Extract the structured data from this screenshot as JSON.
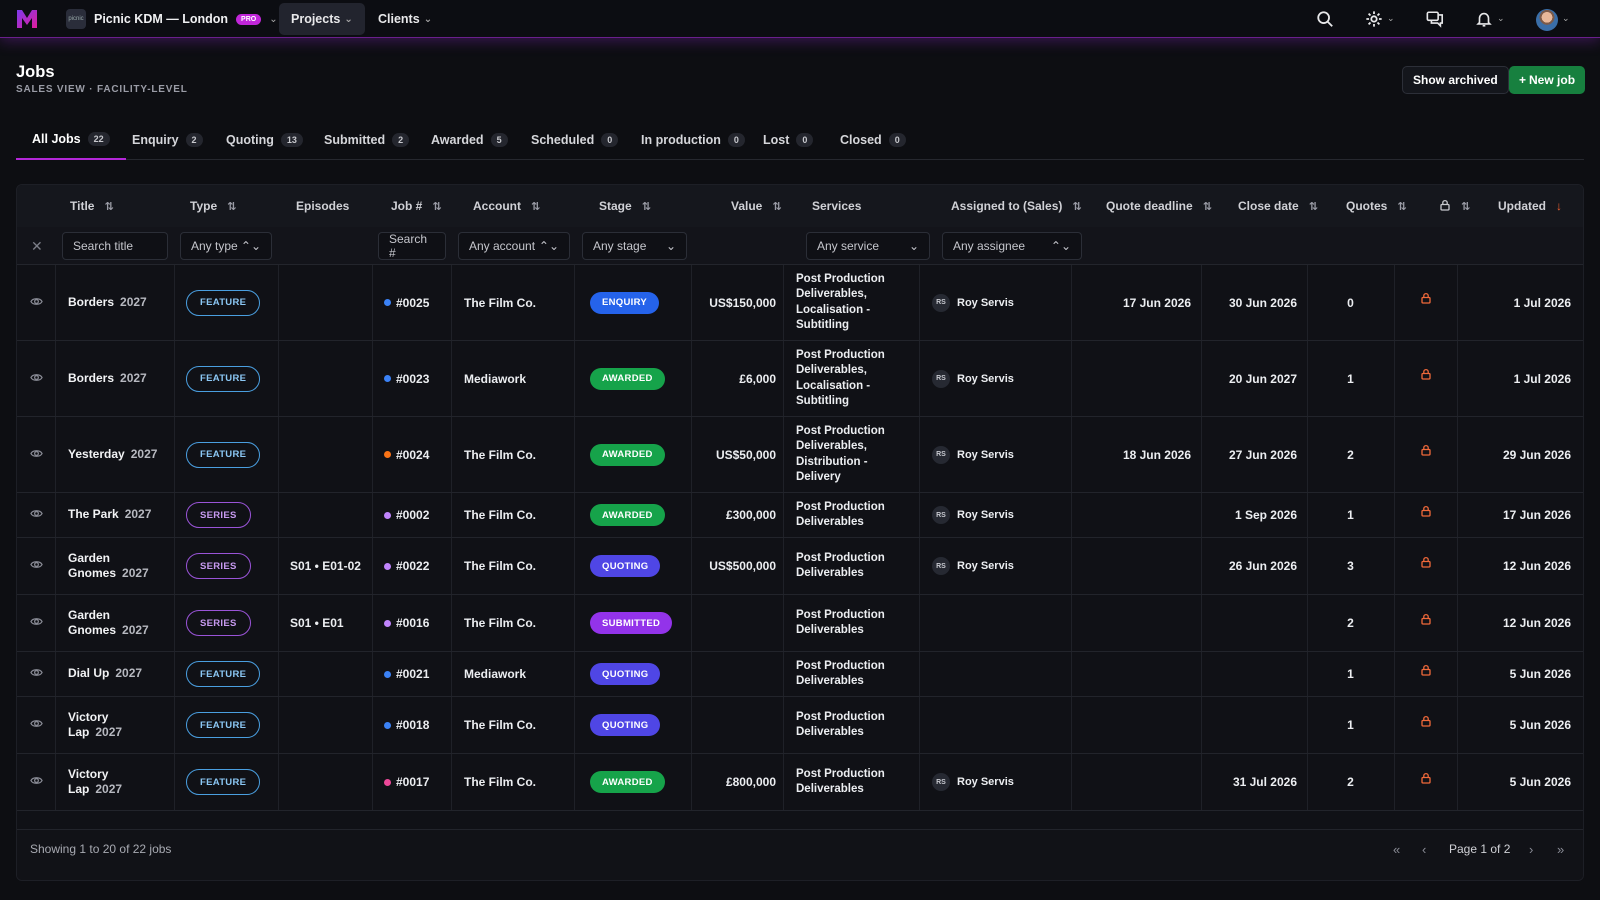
{
  "topbar": {
    "org_name": "Picnic KDM — London",
    "org_avatar": "picnic",
    "pro_label": "PRO",
    "nav": [
      {
        "label": "Projects"
      },
      {
        "label": "Clients"
      }
    ]
  },
  "header": {
    "title": "Jobs",
    "subtitle": "SALES VIEW · FACILITY-LEVEL",
    "show_archived_label": "Show archived",
    "new_job_label": "New job"
  },
  "tabs": [
    {
      "label": "All Jobs",
      "count": "22",
      "active": true
    },
    {
      "label": "Enquiry",
      "count": "2"
    },
    {
      "label": "Quoting",
      "count": "13"
    },
    {
      "label": "Submitted",
      "count": "2"
    },
    {
      "label": "Awarded",
      "count": "5"
    },
    {
      "label": "Scheduled",
      "count": "0"
    },
    {
      "label": "In production",
      "count": "0"
    },
    {
      "label": "Lost",
      "count": "0"
    },
    {
      "label": "Closed",
      "count": "0"
    }
  ],
  "columns": {
    "title": "Title",
    "type": "Type",
    "episodes": "Episodes",
    "job": "Job #",
    "account": "Account",
    "stage": "Stage",
    "value": "Value",
    "services": "Services",
    "assigned": "Assigned to (Sales)",
    "quote_deadline": "Quote deadline",
    "close_date": "Close date",
    "quotes": "Quotes",
    "updated": "Updated"
  },
  "filters": {
    "title_placeholder": "Search title",
    "type_value": "Any type",
    "job_placeholder": "Search #",
    "account_value": "Any account",
    "stage_value": "Any stage",
    "service_value": "Any service",
    "assignee_value": "Any assignee"
  },
  "colors": {
    "accent": "#b427d8",
    "awarded": "#16a34a",
    "enquiry": "#2563eb",
    "quoting": "#4f46e5",
    "submitted": "#9333ea",
    "lock": "#f0693a",
    "primary": "#17803f"
  },
  "rows": [
    {
      "title": "Borders",
      "year": "2027",
      "type": "FEATURE",
      "episodes": "",
      "job": "#0025",
      "dot": "#3b82f6",
      "account": "The Film Co.",
      "stage": "ENQUIRY",
      "stage_color": "#2563eb",
      "value": "US$150,000",
      "services": [
        "Post Production",
        "Deliverables,",
        "Localisation -",
        "Subtitling"
      ],
      "assignee_initials": "RS",
      "assignee": "Roy Servis",
      "quote_deadline": "17 Jun 2026",
      "close_date": "30 Jun 2026",
      "quotes": "0",
      "updated": "1 Jul 2026"
    },
    {
      "title": "Borders",
      "year": "2027",
      "type": "FEATURE",
      "episodes": "",
      "job": "#0023",
      "dot": "#3b82f6",
      "account": "Mediawork",
      "stage": "AWARDED",
      "stage_color": "#16a34a",
      "value": "£6,000",
      "services": [
        "Post Production",
        "Deliverables,",
        "Localisation -",
        "Subtitling"
      ],
      "assignee_initials": "RS",
      "assignee": "Roy Servis",
      "quote_deadline": "",
      "close_date": "20 Jun 2027",
      "quotes": "1",
      "updated": "1 Jul 2026"
    },
    {
      "title": "Yesterday",
      "year": "2027",
      "type": "FEATURE",
      "episodes": "",
      "job": "#0024",
      "dot": "#f97316",
      "account": "The Film Co.",
      "stage": "AWARDED",
      "stage_color": "#16a34a",
      "value": "US$50,000",
      "services": [
        "Post Production",
        "Deliverables,",
        "Distribution -",
        "Delivery"
      ],
      "assignee_initials": "RS",
      "assignee": "Roy Servis",
      "quote_deadline": "18 Jun 2026",
      "close_date": "27 Jun 2026",
      "quotes": "2",
      "updated": "29 Jun 2026"
    },
    {
      "title": "The Park",
      "year": "2027",
      "type": "SERIES",
      "episodes": "",
      "job": "#0002",
      "dot": "#c084fc",
      "account": "The Film Co.",
      "stage": "AWARDED",
      "stage_color": "#16a34a",
      "value": "£300,000",
      "services": [
        "Post Production",
        "Deliverables"
      ],
      "assignee_initials": "RS",
      "assignee": "Roy Servis",
      "quote_deadline": "",
      "close_date": "1 Sep 2026",
      "quotes": "1",
      "updated": "17 Jun 2026"
    },
    {
      "title": "Garden",
      "title2": "Gnomes",
      "year": "2027",
      "type": "SERIES",
      "episodes": "S01 • E01-02",
      "job": "#0022",
      "dot": "#c084fc",
      "account": "The Film Co.",
      "stage": "QUOTING",
      "stage_color": "#4f46e5",
      "value": "US$500,000",
      "services": [
        "Post Production",
        "Deliverables"
      ],
      "assignee_initials": "RS",
      "assignee": "Roy Servis",
      "quote_deadline": "",
      "close_date": "26 Jun 2026",
      "quotes": "3",
      "updated": "12 Jun 2026"
    },
    {
      "title": "Garden",
      "title2": "Gnomes",
      "year": "2027",
      "type": "SERIES",
      "episodes": "S01 • E01",
      "job": "#0016",
      "dot": "#c084fc",
      "account": "The Film Co.",
      "stage": "SUBMITTED",
      "stage_color": "#9333ea",
      "value": "",
      "services": [
        "Post Production",
        "Deliverables"
      ],
      "assignee_initials": "",
      "assignee": "",
      "quote_deadline": "",
      "close_date": "",
      "quotes": "2",
      "updated": "12 Jun 2026"
    },
    {
      "title": "Dial Up",
      "year": "2027",
      "type": "FEATURE",
      "episodes": "",
      "job": "#0021",
      "dot": "#3b82f6",
      "account": "Mediawork",
      "stage": "QUOTING",
      "stage_color": "#4f46e5",
      "value": "",
      "services": [
        "Post Production",
        "Deliverables"
      ],
      "assignee_initials": "",
      "assignee": "",
      "quote_deadline": "",
      "close_date": "",
      "quotes": "1",
      "updated": "5 Jun 2026"
    },
    {
      "title": "Victory",
      "title2": "Lap",
      "year": "2027",
      "type": "FEATURE",
      "episodes": "",
      "job": "#0018",
      "dot": "#3b82f6",
      "account": "The Film Co.",
      "stage": "QUOTING",
      "stage_color": "#4f46e5",
      "value": "",
      "services": [
        "Post Production",
        "Deliverables"
      ],
      "assignee_initials": "",
      "assignee": "",
      "quote_deadline": "",
      "close_date": "",
      "quotes": "1",
      "updated": "5 Jun 2026"
    },
    {
      "title": "Victory",
      "title2": "Lap",
      "year": "2027",
      "type": "FEATURE",
      "episodes": "",
      "job": "#0017",
      "dot": "#ec4899",
      "account": "The Film Co.",
      "stage": "AWARDED",
      "stage_color": "#16a34a",
      "value": "£800,000",
      "services": [
        "Post Production",
        "Deliverables"
      ],
      "assignee_initials": "RS",
      "assignee": "Roy Servis",
      "quote_deadline": "",
      "close_date": "31 Jul 2026",
      "quotes": "2",
      "updated": "5 Jun 2026"
    }
  ],
  "footer": {
    "showing": "Showing 1 to 20 of 22 jobs",
    "page_label": "Page 1 of 2"
  }
}
